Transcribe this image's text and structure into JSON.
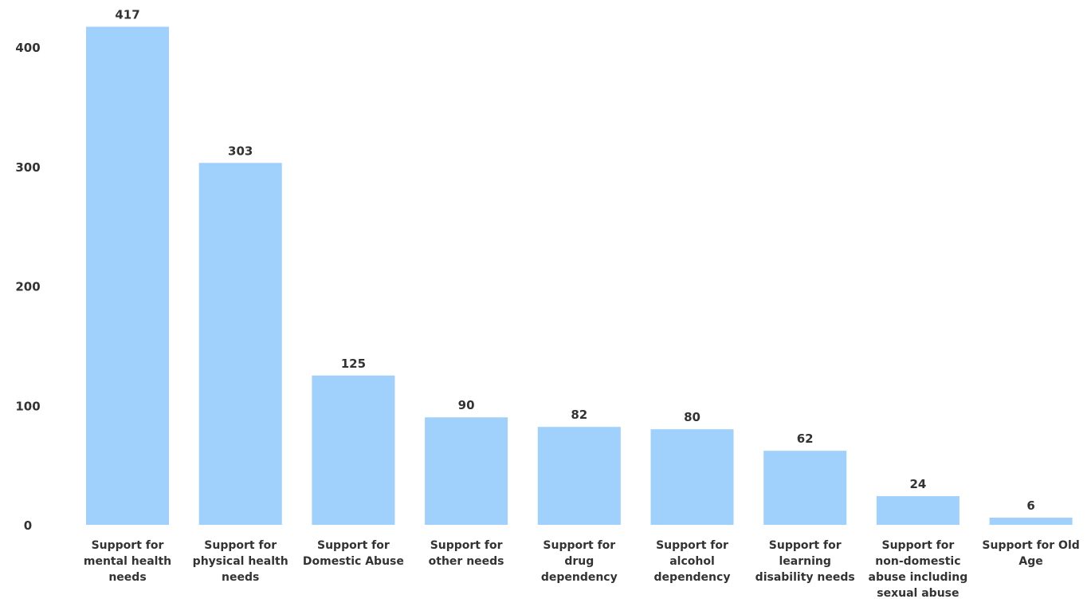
{
  "chart_data": {
    "type": "bar",
    "title": "",
    "xlabel": "",
    "ylabel": "",
    "ylim": [
      0,
      420
    ],
    "yticks": [
      0,
      100,
      200,
      300,
      400
    ],
    "grid": false,
    "bar_color": "#a0d0fc",
    "categories": [
      [
        "Support for",
        "mental health",
        "needs"
      ],
      [
        "Support for",
        "physical health",
        "needs"
      ],
      [
        "Support for",
        "Domestic Abuse"
      ],
      [
        "Support for",
        "other needs"
      ],
      [
        "Support for",
        "drug",
        "dependency"
      ],
      [
        "Support for",
        "alcohol",
        "dependency"
      ],
      [
        "Support for",
        "learning",
        "disability needs"
      ],
      [
        "Support for",
        "non-domestic",
        "abuse including",
        "sexual abuse"
      ],
      [
        "Support for Old",
        "Age"
      ]
    ],
    "values": [
      417,
      303,
      125,
      90,
      82,
      80,
      62,
      24,
      6
    ]
  }
}
